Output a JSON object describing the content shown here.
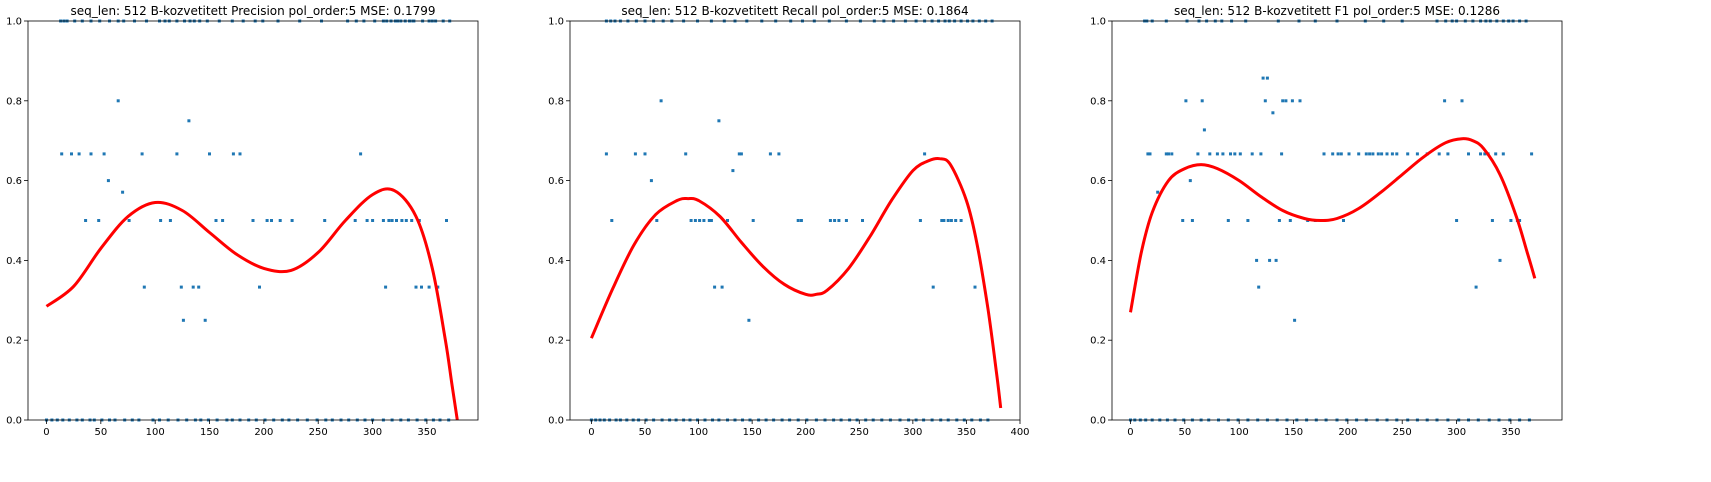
{
  "chart_data": [
    {
      "type": "scatter",
      "title": "seq_len: 512    B-kozvetitett   Precision   pol_order:5   MSE: 0.1799",
      "xlabel": "",
      "ylabel": "",
      "xlim": [
        -17,
        397
      ],
      "ylim": [
        0,
        1
      ],
      "xticks": [
        0,
        50,
        100,
        150,
        200,
        250,
        300,
        350
      ],
      "yticks": [
        0.0,
        0.2,
        0.4,
        0.6,
        0.8,
        1.0
      ],
      "grid": false,
      "marker_color": "#1f77b4",
      "fit_color": "#ff0000",
      "points": {
        "x": [
          14,
          23,
          30,
          36,
          41,
          48,
          53,
          57,
          66,
          70,
          76,
          88,
          90,
          105,
          114,
          120,
          124,
          126,
          131,
          135,
          140,
          146,
          150,
          156,
          162,
          172,
          178,
          190,
          196,
          203,
          207,
          215,
          226,
          256,
          284,
          289,
          295,
          300,
          310,
          312,
          315,
          318,
          322,
          327,
          331,
          336,
          340,
          343,
          345,
          352,
          360,
          368,
          0,
          5,
          10,
          15,
          21,
          28,
          33,
          40,
          44,
          51,
          58,
          63,
          72,
          79,
          85,
          98,
          104,
          112,
          121,
          129,
          137,
          142,
          149,
          157,
          166,
          171,
          178,
          186,
          193,
          201,
          209,
          217,
          223,
          231,
          240,
          249,
          257,
          263,
          271,
          278,
          286,
          293,
          300,
          310,
          318,
          326,
          333,
          341,
          349,
          356,
          362,
          370,
          13,
          16,
          19,
          26,
          33,
          41,
          49,
          58,
          66,
          71,
          81,
          92,
          104,
          109,
          113,
          120,
          127,
          132,
          136,
          141,
          148,
          159,
          171,
          181,
          192,
          199,
          213,
          233,
          253,
          277,
          285,
          292,
          302,
          310,
          313,
          317,
          321,
          323,
          326,
          330,
          334,
          337,
          338,
          346,
          352,
          355,
          358,
          365,
          371
        ],
        "y": [
          0.667,
          0.667,
          0.667,
          0.5,
          0.667,
          0.5,
          0.667,
          0.6,
          0.8,
          0.571,
          0.5,
          0.667,
          0.333,
          0.5,
          0.5,
          0.667,
          0.333,
          0.25,
          0.75,
          0.333,
          0.333,
          0.25,
          0.667,
          0.5,
          0.5,
          0.667,
          0.667,
          0.5,
          0.333,
          0.5,
          0.5,
          0.5,
          0.5,
          0.5,
          0.5,
          0.667,
          0.5,
          0.5,
          0.5,
          0.333,
          0.5,
          0.5,
          0.5,
          0.5,
          0.5,
          0.5,
          0.333,
          0.5,
          0.333,
          0.333,
          0.333,
          0.5,
          0,
          0,
          0,
          0,
          0,
          0,
          0,
          0,
          0,
          0,
          0,
          0,
          0,
          0,
          0,
          0,
          0,
          0,
          0,
          0,
          0,
          0,
          0,
          0,
          0,
          0,
          0,
          0,
          0,
          0,
          0,
          0,
          0,
          0,
          0,
          0,
          0,
          0,
          0,
          0,
          0,
          0,
          0,
          0,
          0,
          0,
          0,
          0,
          0,
          0,
          0,
          0,
          1,
          1,
          1,
          1,
          1,
          1,
          1,
          1,
          1,
          1,
          1,
          1,
          1,
          1,
          1,
          1,
          1,
          1,
          1,
          1,
          1,
          1,
          1,
          1,
          1,
          1,
          1,
          1,
          1,
          1,
          1,
          1,
          1,
          1,
          1,
          1,
          1,
          1,
          1,
          1,
          1,
          1,
          1,
          1,
          1,
          1,
          1,
          1,
          1
        ]
      },
      "fit_curve": {
        "x": [
          0,
          25,
          50,
          75,
          100,
          125,
          150,
          175,
          200,
          225,
          250,
          275,
          300,
          320,
          340,
          355,
          367,
          373,
          378
        ],
        "y": [
          0.285,
          0.335,
          0.43,
          0.51,
          0.545,
          0.525,
          0.47,
          0.415,
          0.38,
          0.375,
          0.42,
          0.5,
          0.565,
          0.575,
          0.51,
          0.38,
          0.2,
          0.09,
          0.0
        ]
      }
    },
    {
      "type": "scatter",
      "title": "seq_len: 512    B-kozvetitett   Recall   pol_order:5   MSE: 0.1864",
      "xlabel": "",
      "ylabel": "",
      "xlim": [
        -20,
        400
      ],
      "ylim": [
        0,
        1
      ],
      "xticks": [
        0,
        50,
        100,
        150,
        200,
        250,
        300,
        350,
        400
      ],
      "yticks": [
        0.0,
        0.2,
        0.4,
        0.6,
        0.8,
        1.0
      ],
      "grid": false,
      "marker_color": "#1f77b4",
      "fit_color": "#ff0000",
      "points": {
        "x": [
          14,
          19,
          41,
          50,
          56,
          61,
          65,
          88,
          93,
          97,
          101,
          105,
          110,
          112,
          115,
          119,
          122,
          127,
          132,
          138,
          140,
          147,
          151,
          167,
          175,
          193,
          196,
          223,
          227,
          231,
          238,
          253,
          307,
          311,
          319,
          327,
          329,
          333,
          336,
          340,
          345,
          358,
          0,
          4,
          8,
          12,
          17,
          23,
          27,
          33,
          39,
          44,
          51,
          58,
          66,
          73,
          79,
          86,
          92,
          99,
          106,
          113,
          119,
          127,
          134,
          141,
          148,
          156,
          163,
          170,
          178,
          185,
          193,
          201,
          210,
          218,
          226,
          233,
          241,
          248,
          256,
          263,
          271,
          279,
          288,
          296,
          303,
          310,
          318,
          326,
          333,
          341,
          348,
          355,
          363,
          370,
          14,
          18,
          22,
          27,
          34,
          42,
          50,
          58,
          67,
          75,
          86,
          99,
          112,
          124,
          134,
          145,
          159,
          172,
          186,
          197,
          208,
          222,
          238,
          251,
          264,
          273,
          282,
          293,
          303,
          311,
          318,
          324,
          330,
          334,
          339,
          345,
          351,
          356,
          362,
          368,
          374
        ],
        "y": [
          0.667,
          0.5,
          0.667,
          0.667,
          0.6,
          0.5,
          0.8,
          0.667,
          0.5,
          0.5,
          0.5,
          0.5,
          0.5,
          0.5,
          0.333,
          0.75,
          0.333,
          0.5,
          0.625,
          0.667,
          0.667,
          0.25,
          0.5,
          0.667,
          0.667,
          0.5,
          0.5,
          0.5,
          0.5,
          0.5,
          0.5,
          0.5,
          0.5,
          0.667,
          0.333,
          0.5,
          0.5,
          0.5,
          0.5,
          0.5,
          0.5,
          0.333,
          0,
          0,
          0,
          0,
          0,
          0,
          0,
          0,
          0,
          0,
          0,
          0,
          0,
          0,
          0,
          0,
          0,
          0,
          0,
          0,
          0,
          0,
          0,
          0,
          0,
          0,
          0,
          0,
          0,
          0,
          0,
          0,
          0,
          0,
          0,
          0,
          0,
          0,
          0,
          0,
          0,
          0,
          0,
          0,
          0,
          0,
          0,
          0,
          0,
          0,
          0,
          0,
          0,
          0,
          1,
          1,
          1,
          1,
          1,
          1,
          1,
          1,
          1,
          1,
          1,
          1,
          1,
          1,
          1,
          1,
          1,
          1,
          1,
          1,
          1,
          1,
          1,
          1,
          1,
          1,
          1,
          1,
          1,
          1,
          1,
          1,
          1,
          1,
          1,
          1,
          1,
          1,
          1,
          1,
          1
        ]
      },
      "fit_curve": {
        "x": [
          0,
          20,
          40,
          60,
          80,
          90,
          100,
          120,
          140,
          160,
          180,
          200,
          210,
          220,
          240,
          260,
          280,
          300,
          315,
          325,
          335,
          350,
          360,
          370,
          378,
          382
        ],
        "y": [
          0.205,
          0.33,
          0.44,
          0.515,
          0.55,
          0.555,
          0.55,
          0.51,
          0.445,
          0.385,
          0.34,
          0.315,
          0.315,
          0.325,
          0.38,
          0.46,
          0.55,
          0.625,
          0.65,
          0.655,
          0.64,
          0.55,
          0.44,
          0.28,
          0.12,
          0.03
        ]
      }
    },
    {
      "type": "scatter",
      "title": "seq_len: 512    B-kozvetitett   F1   pol_order:5   MSE: 0.1286",
      "xlabel": "",
      "ylabel": "",
      "xlim": [
        -17,
        397
      ],
      "ylim": [
        0,
        1
      ],
      "xticks": [
        0,
        50,
        100,
        150,
        200,
        250,
        300,
        350
      ],
      "yticks": [
        0.0,
        0.2,
        0.4,
        0.6,
        0.8,
        1.0
      ],
      "grid": false,
      "marker_color": "#1f77b4",
      "fit_color": "#ff0000",
      "points": {
        "x": [
          16,
          18,
          25,
          33,
          35,
          38,
          48,
          51,
          55,
          57,
          62,
          66,
          68,
          73,
          80,
          85,
          90,
          92,
          96,
          101,
          108,
          112,
          116,
          118,
          120,
          122,
          124,
          126,
          128,
          131,
          134,
          137,
          139,
          140,
          143,
          147,
          149,
          151,
          156,
          163,
          170,
          178,
          186,
          191,
          194,
          196,
          201,
          210,
          217,
          220,
          223,
          228,
          231,
          236,
          241,
          245,
          255,
          264,
          273,
          284,
          289,
          292,
          300,
          305,
          311,
          318,
          322,
          326,
          329,
          333,
          336,
          340,
          343,
          350,
          356,
          358,
          369,
          0,
          4,
          9,
          14,
          20,
          27,
          34,
          41,
          49,
          57,
          65,
          72,
          81,
          90,
          99,
          108,
          117,
          126,
          135,
          144,
          153,
          162,
          171,
          180,
          190,
          199,
          208,
          217,
          227,
          236,
          245,
          255,
          264,
          273,
          282,
          292,
          302,
          311,
          320,
          330,
          339,
          349,
          358,
          367,
          13,
          15,
          20,
          33,
          52,
          63,
          70,
          78,
          84,
          93,
          106,
          136,
          155,
          170,
          190,
          216,
          233,
          250,
          282,
          290,
          296,
          300,
          308,
          315,
          322,
          327,
          331,
          337,
          343,
          348,
          352,
          358,
          364
        ],
        "y": [
          0.667,
          0.667,
          0.571,
          0.667,
          0.667,
          0.667,
          0.5,
          0.8,
          0.6,
          0.5,
          0.667,
          0.8,
          0.727,
          0.667,
          0.667,
          0.667,
          0.5,
          0.667,
          0.667,
          0.667,
          0.5,
          0.667,
          0.4,
          0.333,
          0.667,
          0.857,
          0.8,
          0.857,
          0.4,
          0.77,
          0.4,
          0.5,
          0.667,
          0.8,
          0.8,
          0.5,
          0.8,
          0.25,
          0.8,
          0.5,
          0.5,
          0.667,
          0.667,
          0.667,
          0.667,
          0.5,
          0.667,
          0.667,
          0.667,
          0.667,
          0.667,
          0.667,
          0.667,
          0.667,
          0.667,
          0.667,
          0.667,
          0.667,
          0.667,
          0.667,
          0.8,
          0.667,
          0.5,
          0.8,
          0.667,
          0.333,
          0.667,
          0.667,
          0.667,
          0.5,
          0.667,
          0.4,
          0.667,
          0.5,
          0.5,
          0.5,
          0.667,
          0,
          0,
          0,
          0,
          0,
          0,
          0,
          0,
          0,
          0,
          0,
          0,
          0,
          0,
          0,
          0,
          0,
          0,
          0,
          0,
          0,
          0,
          0,
          0,
          0,
          0,
          0,
          0,
          0,
          0,
          0,
          0,
          0,
          0,
          0,
          0,
          0,
          0,
          0,
          0,
          0,
          0,
          0,
          0,
          1,
          1,
          1,
          1,
          1,
          1,
          1,
          1,
          1,
          1,
          1,
          1,
          1,
          1,
          1,
          1,
          1,
          1,
          1,
          1,
          1,
          1,
          1,
          1,
          1,
          1,
          1,
          1,
          1,
          1,
          1,
          1,
          1
        ]
      },
      "fit_curve": {
        "x": [
          0,
          10,
          20,
          35,
          50,
          65,
          80,
          100,
          120,
          140,
          160,
          175,
          190,
          210,
          230,
          250,
          270,
          290,
          305,
          315,
          325,
          340,
          355,
          365,
          372
        ],
        "y": [
          0.27,
          0.42,
          0.52,
          0.6,
          0.63,
          0.64,
          0.63,
          0.6,
          0.56,
          0.525,
          0.505,
          0.5,
          0.505,
          0.53,
          0.57,
          0.615,
          0.66,
          0.695,
          0.705,
          0.7,
          0.68,
          0.615,
          0.51,
          0.42,
          0.355
        ]
      }
    }
  ]
}
